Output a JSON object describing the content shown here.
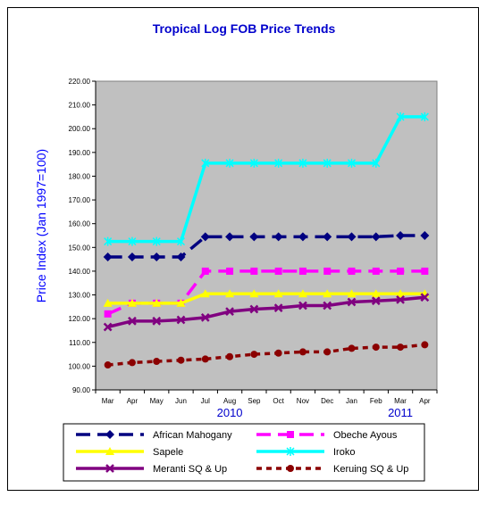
{
  "chart_data": {
    "type": "line",
    "title": "Tropical Log FOB Price Trends",
    "ylabel": "Price Index (Jan 1997=100)",
    "ylim": [
      90,
      220
    ],
    "ystep": 10,
    "ytick_format": "2dp",
    "grid": false,
    "legend_position": "bottom",
    "categories": [
      "Mar",
      "Apr",
      "May",
      "Jun",
      "Jul",
      "Aug",
      "Sep",
      "Oct",
      "Nov",
      "Dec",
      "Jan",
      "Feb",
      "Mar",
      "Apr"
    ],
    "year_labels": [
      {
        "text": "2010",
        "category_index": 5
      },
      {
        "text": "2011",
        "category_index": 12
      }
    ],
    "series": [
      {
        "name": "African Mahogany",
        "color": "#000080",
        "dash": "long",
        "marker": "diamond",
        "values": [
          146,
          146,
          146,
          146,
          154.5,
          154.5,
          154.5,
          154.5,
          154.5,
          154.5,
          154.5,
          154.5,
          155,
          155
        ]
      },
      {
        "name": "Obeche Ayous",
        "color": "#ff00ff",
        "dash": "long",
        "marker": "square",
        "values": [
          122,
          126.5,
          126.5,
          126.5,
          140,
          140,
          140,
          140,
          140,
          140,
          140,
          140,
          140,
          140
        ]
      },
      {
        "name": "Sapele",
        "color": "#ffff00",
        "dash": "solid",
        "marker": "triangle",
        "values": [
          126.5,
          126.5,
          126.5,
          126.5,
          130.5,
          130.5,
          130.5,
          130.5,
          130.5,
          130.5,
          130.5,
          130.5,
          130.5,
          130.5
        ]
      },
      {
        "name": "Iroko",
        "color": "#00ffff",
        "dash": "solid",
        "marker": "star",
        "values": [
          152.5,
          152.5,
          152.5,
          152.5,
          185.5,
          185.5,
          185.5,
          185.5,
          185.5,
          185.5,
          185.5,
          185.5,
          205,
          205
        ]
      },
      {
        "name": "Meranti SQ & Up",
        "color": "#800080",
        "dash": "solid",
        "marker": "x",
        "values": [
          116.5,
          119,
          119,
          119.5,
          120.5,
          123,
          124,
          124.5,
          125.5,
          125.5,
          127,
          127.5,
          128,
          129
        ]
      },
      {
        "name": "Keruing SQ & Up",
        "color": "#8b0000",
        "dash": "short",
        "marker": "circle",
        "values": [
          100.5,
          101.5,
          102,
          102.5,
          103,
          104,
          105,
          105.5,
          106,
          106,
          107.5,
          108,
          108,
          109
        ]
      }
    ]
  }
}
